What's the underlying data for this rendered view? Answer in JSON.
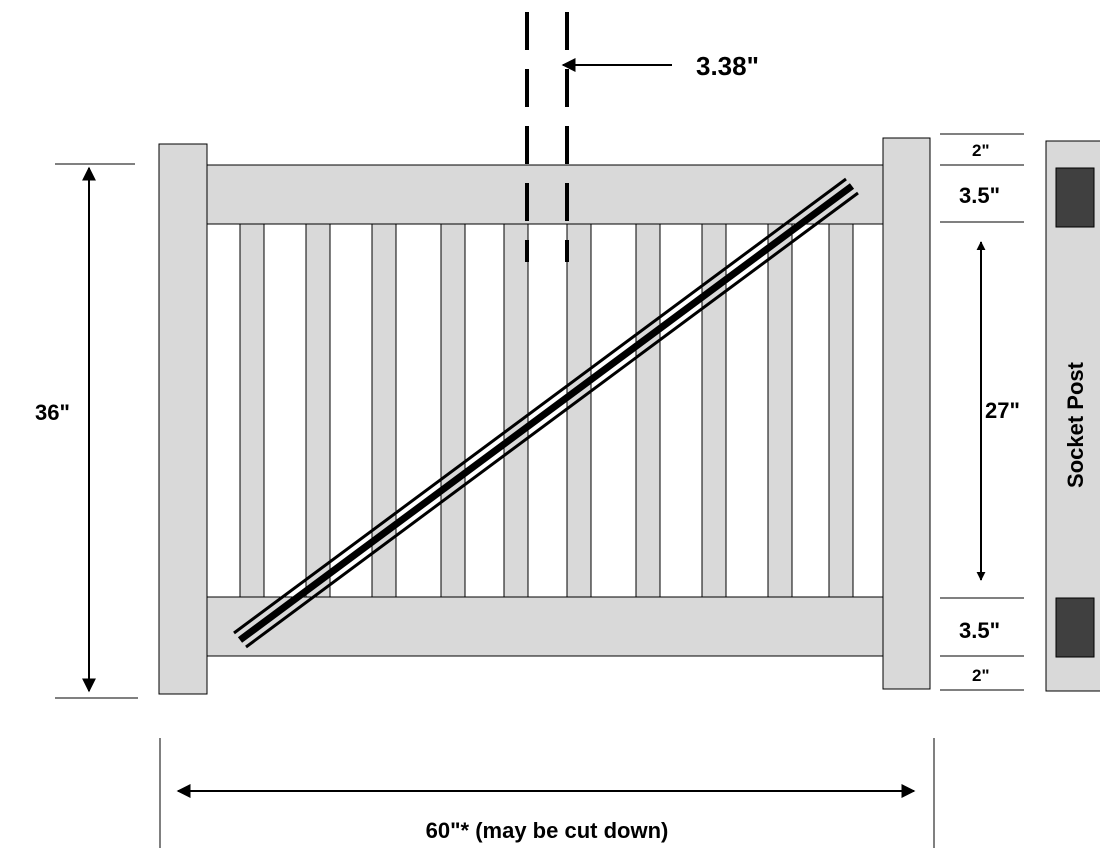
{
  "labels": {
    "spacing": "3.38\"",
    "total_height": "36\"",
    "top_cap": "2\"",
    "top_rail": "3.5\"",
    "picket_height": "27\"",
    "bottom_rail": "3.5\"",
    "bottom_cap": "2\"",
    "width": "60\"* (may be cut down)",
    "socket_post": "Socket Post"
  },
  "colors": {
    "panel": "#d9d9d9",
    "socket": "#404040",
    "line": "#000000"
  }
}
